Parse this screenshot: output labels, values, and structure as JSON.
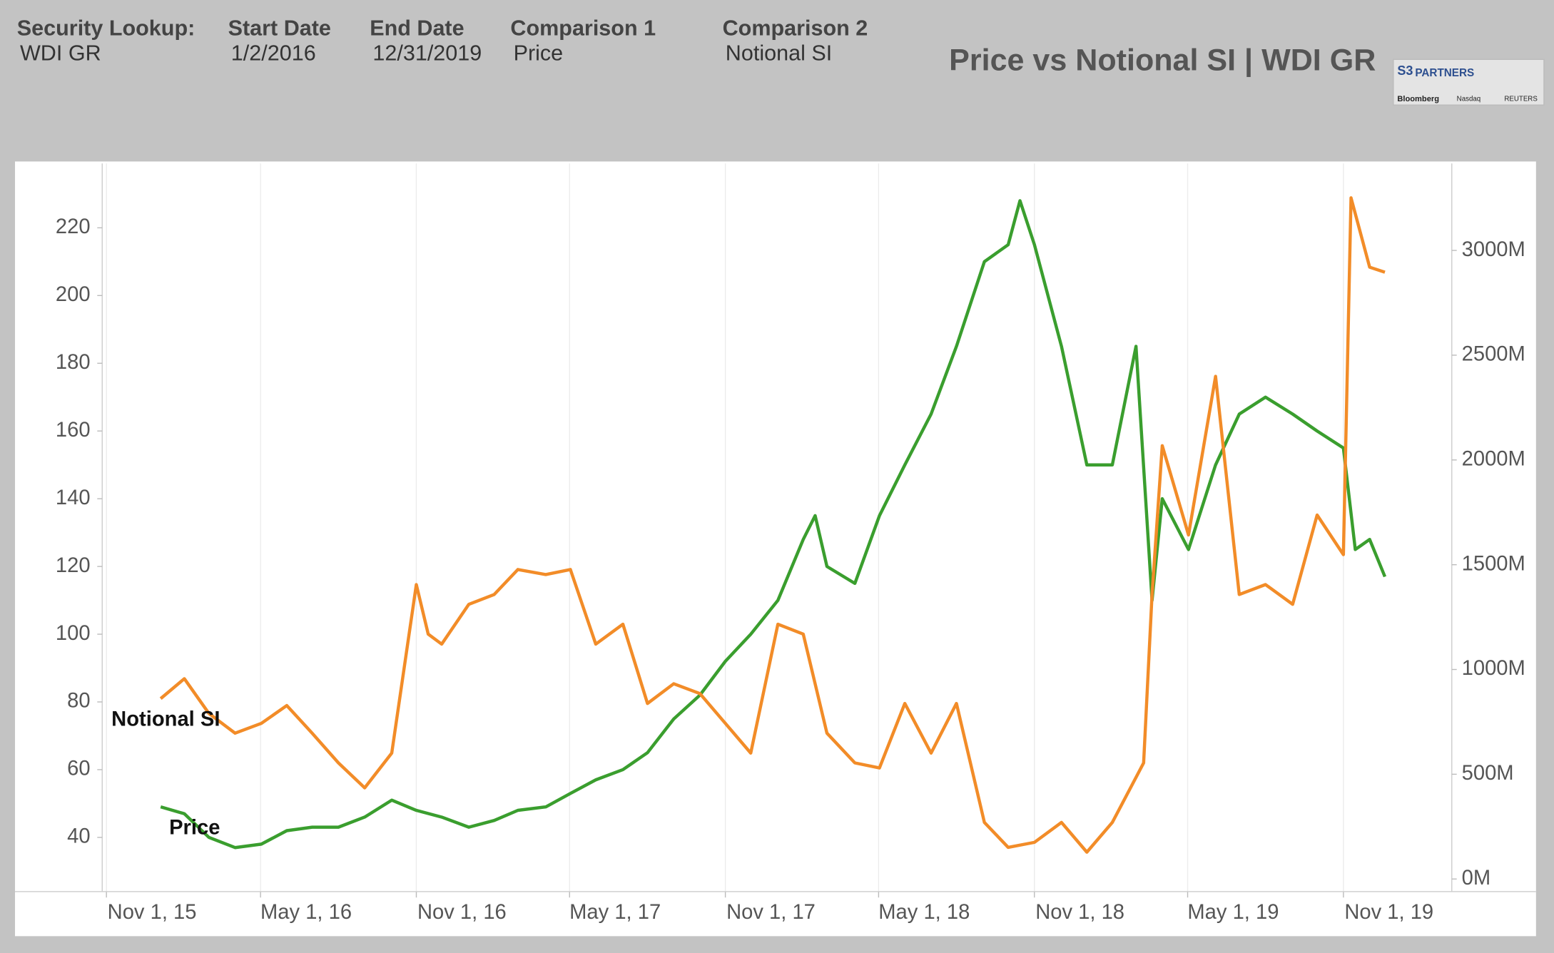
{
  "header": {
    "fields": [
      {
        "label": "Security Lookup:",
        "value": "WDI GR"
      },
      {
        "label": "Start Date",
        "value": "1/2/2016"
      },
      {
        "label": "End Date",
        "value": "12/31/2019"
      },
      {
        "label": "Comparison 1",
        "value": "Price"
      },
      {
        "label": "Comparison 2",
        "value": "Notional SI"
      }
    ],
    "logo": {
      "mark": "S3",
      "name": "PARTNERS",
      "sources": [
        "Bloomberg",
        "Nasdaq",
        "REUTERS"
      ]
    }
  },
  "chart_data": {
    "type": "line",
    "title": "Price vs Notional SI | WDI GR",
    "xlim": [
      "2015-10-27",
      "2020-03-08"
    ],
    "xticks": [
      {
        "value": "2015-11-01",
        "label": "Nov 1, 15"
      },
      {
        "value": "2016-05-01",
        "label": "May 1, 16"
      },
      {
        "value": "2016-11-01",
        "label": "Nov 1, 16"
      },
      {
        "value": "2017-05-01",
        "label": "May 1, 17"
      },
      {
        "value": "2017-11-01",
        "label": "Nov 1, 17"
      },
      {
        "value": "2018-05-01",
        "label": "May 1, 18"
      },
      {
        "value": "2018-11-01",
        "label": "Nov 1, 18"
      },
      {
        "value": "2019-05-01",
        "label": "May 1, 19"
      },
      {
        "value": "2019-11-01",
        "label": "Nov 1, 19"
      }
    ],
    "ylim": [
      24,
      239
    ],
    "yticks": [
      40,
      60,
      80,
      100,
      120,
      140,
      160,
      180,
      200,
      220
    ],
    "y2lim": [
      -60,
      3415
    ],
    "y2ticks": [
      {
        "value": 0,
        "label": "0M"
      },
      {
        "value": 500,
        "label": "500M"
      },
      {
        "value": 1000,
        "label": "1000M"
      },
      {
        "value": 1500,
        "label": "1500M"
      },
      {
        "value": 2000,
        "label": "2000M"
      },
      {
        "value": 2500,
        "label": "2500M"
      },
      {
        "value": 3000,
        "label": "3000M"
      }
    ],
    "grid": "x",
    "series": [
      {
        "name": "Price",
        "color": "#3a9e2e",
        "x": [
          "2016-01-04",
          "2016-02-01",
          "2016-03-01",
          "2016-04-01",
          "2016-05-02",
          "2016-06-01",
          "2016-07-01",
          "2016-08-01",
          "2016-09-01",
          "2016-10-03",
          "2016-11-01",
          "2016-12-01",
          "2017-01-02",
          "2017-02-01",
          "2017-03-01",
          "2017-04-03",
          "2017-05-02",
          "2017-06-01",
          "2017-07-03",
          "2017-08-01",
          "2017-09-01",
          "2017-10-02",
          "2017-11-01",
          "2017-12-01",
          "2018-01-02",
          "2018-02-01",
          "2018-02-15",
          "2018-03-01",
          "2018-04-03",
          "2018-05-02",
          "2018-06-01",
          "2018-07-02",
          "2018-08-01",
          "2018-09-03",
          "2018-10-01",
          "2018-10-15",
          "2018-11-01",
          "2018-12-03",
          "2019-01-02",
          "2019-02-01",
          "2019-03-01",
          "2019-03-20",
          "2019-04-01",
          "2019-05-02",
          "2019-06-03",
          "2019-07-01",
          "2019-08-01",
          "2019-09-02",
          "2019-10-01",
          "2019-11-01",
          "2019-11-15",
          "2019-12-02",
          "2019-12-20"
        ],
        "values": [
          49,
          47,
          40,
          37,
          38,
          42,
          43,
          43,
          46,
          51,
          48,
          46,
          43,
          45,
          48,
          49,
          53,
          57,
          60,
          65,
          75,
          82,
          92,
          100,
          110,
          128,
          135,
          120,
          115,
          135,
          150,
          165,
          185,
          210,
          215,
          228,
          215,
          185,
          150,
          150,
          185,
          110,
          140,
          125,
          150,
          165,
          170,
          165,
          160,
          155,
          125,
          128,
          117
        ]
      },
      {
        "name": "Notional SI",
        "color": "#f28c28",
        "axis": "y2",
        "x": [
          "2016-01-04",
          "2016-02-01",
          "2016-03-01",
          "2016-04-01",
          "2016-05-02",
          "2016-06-01",
          "2016-07-01",
          "2016-08-01",
          "2016-09-01",
          "2016-10-03",
          "2016-11-01",
          "2016-11-15",
          "2016-12-01",
          "2017-01-02",
          "2017-02-01",
          "2017-03-01",
          "2017-04-03",
          "2017-05-02",
          "2017-06-01",
          "2017-07-03",
          "2017-08-01",
          "2017-09-01",
          "2017-10-02",
          "2017-11-01",
          "2017-12-01",
          "2018-01-02",
          "2018-02-01",
          "2018-03-01",
          "2018-04-03",
          "2018-05-02",
          "2018-06-01",
          "2018-07-02",
          "2018-08-01",
          "2018-09-03",
          "2018-10-01",
          "2018-11-01",
          "2018-12-03",
          "2019-01-02",
          "2019-02-01",
          "2019-03-10",
          "2019-03-20",
          "2019-04-01",
          "2019-05-02",
          "2019-06-03",
          "2019-07-01",
          "2019-08-01",
          "2019-09-02",
          "2019-10-01",
          "2019-11-01",
          "2019-11-10",
          "2019-12-02",
          "2019-12-20"
        ],
        "values": [
          861,
          956,
          790,
          696,
          743,
          828,
          696,
          554,
          435,
          601,
          1405,
          1169,
          1121,
          1311,
          1358,
          1477,
          1453,
          1477,
          1121,
          1216,
          838,
          932,
          885,
          743,
          601,
          1216,
          1169,
          696,
          554,
          530,
          838,
          601,
          838,
          270,
          151,
          175,
          270,
          128,
          270,
          554,
          1358,
          2068,
          1642,
          2399,
          1358,
          1405,
          1311,
          1737,
          1548,
          3251,
          2920,
          2896
        ]
      }
    ]
  }
}
